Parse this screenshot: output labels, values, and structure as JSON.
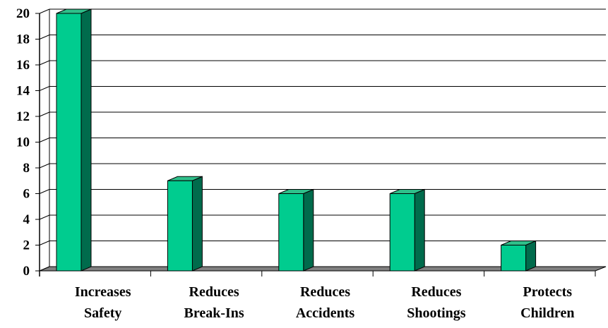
{
  "chart_data": {
    "type": "bar",
    "title": "",
    "xlabel": "",
    "ylabel": "",
    "ylim": [
      0,
      20
    ],
    "yticks": [
      0,
      2,
      4,
      6,
      8,
      10,
      12,
      14,
      16,
      18,
      20
    ],
    "categories": [
      [
        "Increases",
        "Safety"
      ],
      [
        "Reduces",
        "Break-Ins"
      ],
      [
        "Reduces",
        "Accidents"
      ],
      [
        "Reduces",
        "Shootings"
      ],
      [
        "Protects",
        "Children"
      ]
    ],
    "values": [
      20,
      7,
      6,
      6,
      2
    ],
    "grid": true,
    "legend": "none",
    "style": "3d-column"
  },
  "colors": {
    "bar_front": "#00CC8F",
    "bar_top": "#2FBF8A",
    "bar_side": "#006B4C",
    "floor": "#808080",
    "grid": "#000000",
    "background": "#FFFFFF"
  }
}
